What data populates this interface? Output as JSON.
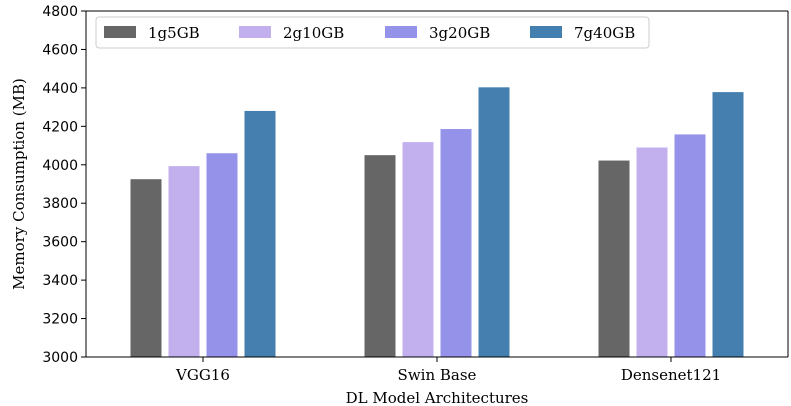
{
  "chart_data": {
    "type": "bar",
    "categories": [
      "VGG16",
      "Swin Base",
      "Densenet121"
    ],
    "series": [
      {
        "name": "1g5GB",
        "color": "#666666",
        "values": [
          3925,
          4050,
          4022
        ]
      },
      {
        "name": "2g10GB",
        "color": "#c2b0ee",
        "values": [
          3993,
          4118,
          4090
        ]
      },
      {
        "name": "3g20GB",
        "color": "#9592ea",
        "values": [
          4060,
          4186,
          4158
        ]
      },
      {
        "name": "7g40GB",
        "color": "#457fb0",
        "values": [
          4280,
          4403,
          4378
        ]
      }
    ],
    "xlabel": "DL Model Architectures",
    "ylabel": "Memory Consumption (MB)",
    "ylim": [
      3000,
      4800
    ],
    "yticks": [
      3000,
      3200,
      3400,
      3600,
      3800,
      4000,
      4200,
      4400,
      4600,
      4800
    ],
    "legend": {
      "placement": "top-left",
      "ncol": 4
    },
    "grid": false
  }
}
